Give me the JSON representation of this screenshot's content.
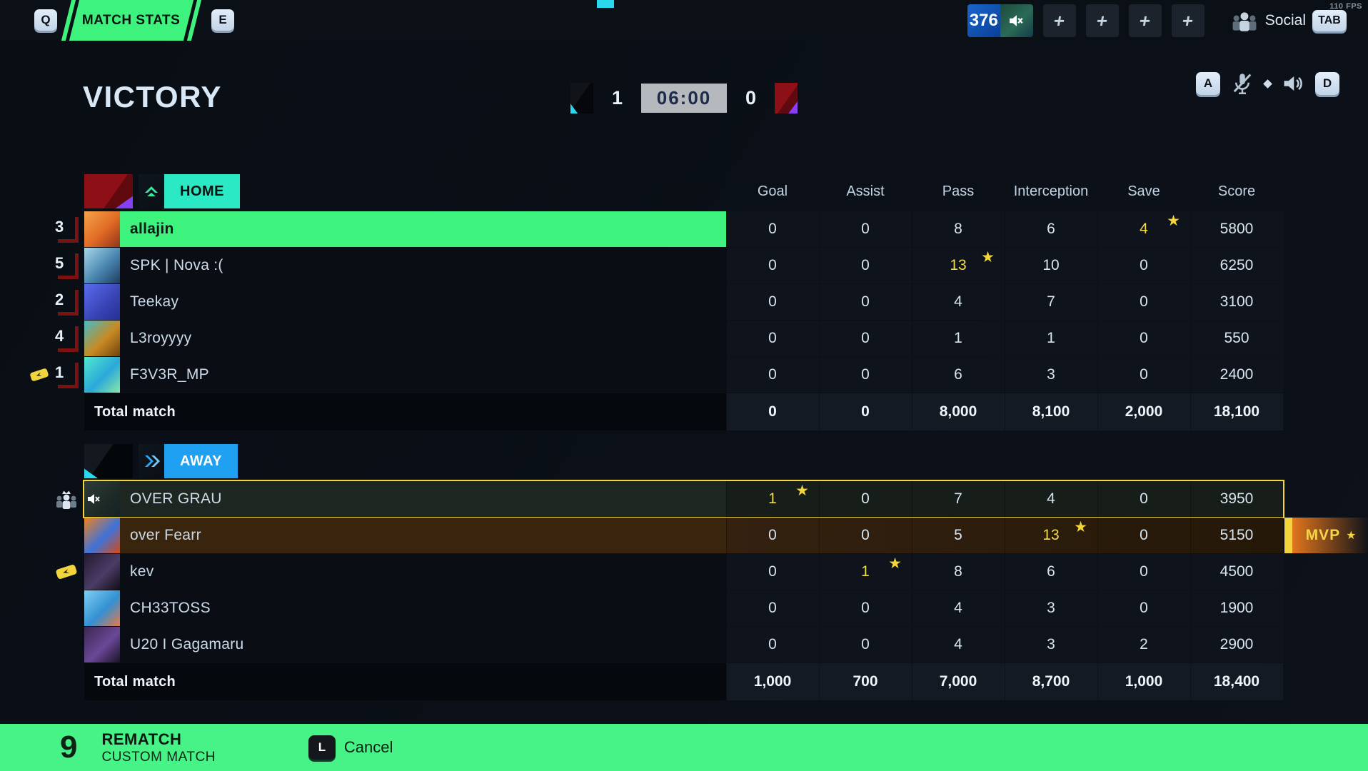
{
  "fps": "110 FPS",
  "topbar": {
    "key_q": "Q",
    "tab_label": "MATCH STATS",
    "key_e": "E",
    "counter": "376",
    "plus_buttons": [
      "+",
      "+",
      "+",
      "+"
    ],
    "social_label": "Social",
    "social_key": "TAB"
  },
  "header": {
    "result": "VICTORY",
    "score_left": "1",
    "timer": "06:00",
    "score_right": "0",
    "key_left": "A",
    "key_right": "D"
  },
  "columns": [
    "Goal",
    "Assist",
    "Pass",
    "Interception",
    "Save",
    "Score"
  ],
  "home": {
    "label": "HOME",
    "players": [
      {
        "rank": "3",
        "name": "allajin",
        "stats": [
          "0",
          "0",
          "8",
          "6",
          "4",
          "5800"
        ],
        "yellow_col": 4,
        "star_col": 4,
        "highlight": "self",
        "avatar": [
          "#f5a44a",
          "#e06a24",
          "#92331a"
        ]
      },
      {
        "rank": "5",
        "name": "SPK | Nova :(",
        "stats": [
          "0",
          "0",
          "13",
          "10",
          "0",
          "6250"
        ],
        "yellow_col": 2,
        "star_col": 2,
        "avatar": [
          "#a8d8e8",
          "#4a86b0",
          "#1e3c60"
        ]
      },
      {
        "rank": "2",
        "name": "Teekay",
        "stats": [
          "0",
          "0",
          "4",
          "7",
          "0",
          "3100"
        ],
        "avatar": [
          "#5a6cf0",
          "#3b46b8",
          "#262f94"
        ]
      },
      {
        "rank": "4",
        "name": "L3royyyy",
        "stats": [
          "0",
          "0",
          "1",
          "1",
          "0",
          "550"
        ],
        "avatar": [
          "#45bcc8",
          "#c88a22",
          "#6e4210"
        ]
      },
      {
        "rank": "1",
        "name": "F3V3R_MP",
        "stats": [
          "0",
          "0",
          "6",
          "3",
          "0",
          "2400"
        ],
        "ticket": true,
        "avatar": [
          "#52e8d0",
          "#2aa8d8",
          "#8ae8a8"
        ]
      }
    ],
    "total_label": "Total match",
    "total": [
      "0",
      "0",
      "8,000",
      "8,100",
      "2,000",
      "18,100"
    ]
  },
  "away": {
    "label": "AWAY",
    "players": [
      {
        "name": "OVER GRAU",
        "stats": [
          "1",
          "0",
          "7",
          "4",
          "0",
          "3950"
        ],
        "yellow_col": 0,
        "star_col": 0,
        "outlined": true,
        "muted": true,
        "party": true,
        "avatar": [
          "#50645a",
          "#31473f",
          "#22333a"
        ]
      },
      {
        "name": "over Fearr",
        "stats": [
          "0",
          "0",
          "5",
          "13",
          "0",
          "5150"
        ],
        "yellow_col": 3,
        "star_col": 3,
        "mvp": true,
        "avatar": [
          "#f0821f",
          "#3f72d8",
          "#d8490f"
        ]
      },
      {
        "name": "kev",
        "stats": [
          "0",
          "1",
          "8",
          "6",
          "0",
          "4500"
        ],
        "yellow_col": 1,
        "star_col": 1,
        "ticket": true,
        "avatar": [
          "#241b30",
          "#4a3c66",
          "#120d18"
        ]
      },
      {
        "name": "CH33TOSS",
        "stats": [
          "0",
          "0",
          "4",
          "3",
          "0",
          "1900"
        ],
        "avatar": [
          "#7fd0f2",
          "#3390d2",
          "#e87a48"
        ]
      },
      {
        "name": "U20 I Gagamaru",
        "stats": [
          "0",
          "0",
          "4",
          "3",
          "2",
          "2900"
        ],
        "avatar": [
          "#3a2850",
          "#6a4898",
          "#1c1228"
        ]
      }
    ],
    "total_label": "Total match",
    "total": [
      "1,000",
      "700",
      "7,000",
      "8,700",
      "1,000",
      "18,400"
    ]
  },
  "mvp_label": "MVP",
  "footer": {
    "key": "9",
    "primary": "REMATCH",
    "secondary": "CUSTOM MATCH",
    "cancel_key": "L",
    "cancel_label": "Cancel"
  },
  "colors": {
    "green": "#3DF37E",
    "green2": "#47F286",
    "teal": "#2BE9C5",
    "blue": "#1FA0F0",
    "cyan": "#2BD7EC",
    "star": "#F2D53C",
    "staty": "#F2DC4E",
    "mvp": "#E2761C",
    "rankred": "#7C1111",
    "timer": "#B5B8BC"
  }
}
